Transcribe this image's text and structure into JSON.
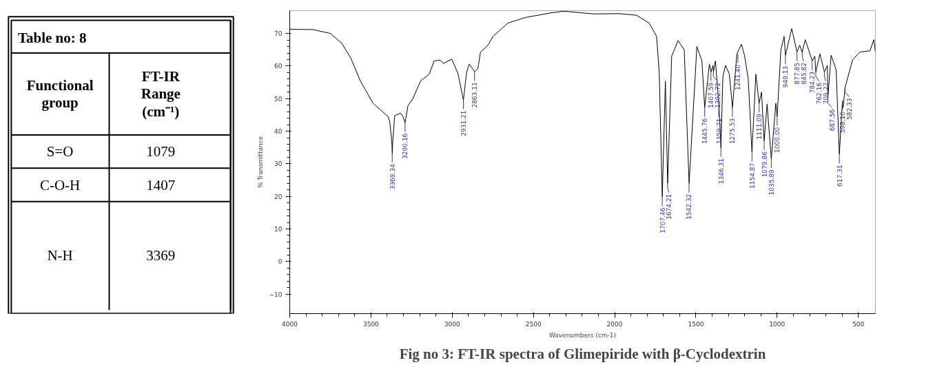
{
  "chart_data": [
    {
      "type": "other",
      "title": "Table no: 8",
      "annotations": [
        "Functional group",
        "FT-IR Range (cm⁻¹)",
        "S=O",
        "1079",
        "C-O-H",
        "1407",
        "N-H",
        "3369"
      ]
    },
    {
      "type": "line",
      "title": "Fig no 3: FT-IR spectra of Glimepiride with β-Cyclodextrin",
      "xlabel": "Wavenumbers (cm-1)",
      "ylabel": "% Transmittance",
      "color": "#000000",
      "x": [
        4000,
        3857,
        3749,
        3680,
        3626,
        3565,
        3488,
        3395,
        3385,
        3372,
        3369,
        3365,
        3354,
        3318,
        3303,
        3290,
        3272,
        3242,
        3195,
        3142,
        3111,
        3072,
        3054,
        3003,
        2965,
        2931,
        2911,
        2895,
        2869,
        2863,
        2842,
        2826,
        2780,
        2749,
        2657,
        2549,
        2395,
        2318,
        2283,
        2128,
        1974,
        1866,
        1788,
        1742,
        1726,
        1707,
        1688,
        1674,
        1649,
        1610,
        1572,
        1542,
        1494,
        1463,
        1446,
        1417,
        1407,
        1395,
        1392,
        1380,
        1357,
        1346,
        1334,
        1318,
        1294,
        1275,
        1248,
        1220,
        1201,
        1178,
        1155,
        1131,
        1111,
        1096,
        1080,
        1062,
        1036,
        1008,
        1000,
        977,
        957,
        949,
        910,
        878,
        861,
        846,
        827,
        784,
        768,
        762,
        737,
        709,
        691,
        688,
        668,
        637,
        617,
        598,
        594,
        582,
        536,
        490,
        428,
        405,
        395
      ],
      "values": [
        71.3,
        71.2,
        70,
        67,
        62.6,
        55.4,
        48.6,
        44.5,
        43.1,
        37,
        33.2,
        37.6,
        44.8,
        45.5,
        44.5,
        42.6,
        47.9,
        50,
        55.4,
        57.5,
        61.6,
        61.8,
        60.8,
        62.1,
        57.8,
        49.6,
        58.2,
        60.6,
        58.8,
        58.3,
        59.2,
        64.3,
        66.4,
        69.1,
        73.2,
        74.9,
        76.3,
        76.8,
        76.7,
        76,
        76.1,
        75.6,
        73.2,
        69.1,
        58.2,
        19.8,
        55.4,
        24,
        63,
        67.8,
        65,
        24,
        66,
        61.6,
        47.2,
        60.6,
        58.2,
        60.2,
        58.2,
        61.6,
        47.2,
        34.9,
        56.8,
        60.2,
        57.5,
        47.2,
        63.7,
        66.7,
        63.3,
        56.1,
        33.5,
        57.5,
        48.6,
        52,
        37,
        48.3,
        31.5,
        48.6,
        44.5,
        65,
        69.1,
        63.3,
        71.5,
        64.3,
        66.4,
        64.3,
        68.1,
        61.6,
        63,
        58.2,
        63.7,
        58.2,
        60.2,
        50,
        63.3,
        58.9,
        32.9,
        49.3,
        47.2,
        53.4,
        61.9,
        64.3,
        64.7,
        68.1,
        64.3
      ],
      "xlim": [
        4000,
        395
      ],
      "ylim": [
        -16,
        77
      ],
      "xticks": [
        4000,
        3500,
        3000,
        2500,
        2000,
        1500,
        1000,
        500
      ],
      "yticks": [
        -10,
        0,
        10,
        20,
        30,
        40,
        50,
        60,
        70
      ],
      "annotations": [
        {
          "text": "3369.34",
          "x": 3369.34,
          "y": 33.2
        },
        {
          "text": "3290.16",
          "x": 3290.16,
          "y": 42.6
        },
        {
          "text": "2931.21",
          "x": 2931.21,
          "y": 49.6
        },
        {
          "text": "2863.11",
          "x": 2863.11,
          "y": 58.3
        },
        {
          "text": "1707.46",
          "x": 1707.46,
          "y": 19.8
        },
        {
          "text": "1674.21",
          "x": 1674.21,
          "y": 24
        },
        {
          "text": "1542.32",
          "x": 1542.32,
          "y": 24
        },
        {
          "text": "1445.76",
          "x": 1445.76,
          "y": 47.2
        },
        {
          "text": "1407.59",
          "x": 1407.59,
          "y": 58.2
        },
        {
          "text": "1392.72",
          "x": 1392.72,
          "y": 58.2
        },
        {
          "text": "1359.71",
          "x": 1359.71,
          "y": 47.2
        },
        {
          "text": "1346.31",
          "x": 1346.31,
          "y": 34.9
        },
        {
          "text": "1275.53",
          "x": 1275.53,
          "y": 47.2
        },
        {
          "text": "1241.40",
          "x": 1241.4,
          "y": 63.7
        },
        {
          "text": "1154.87",
          "x": 1154.87,
          "y": 33.5
        },
        {
          "text": "1111.09",
          "x": 1111.09,
          "y": 48.6
        },
        {
          "text": "1079.86",
          "x": 1079.86,
          "y": 37
        },
        {
          "text": "1035.89",
          "x": 1035.89,
          "y": 31.5
        },
        {
          "text": "1000.00",
          "x": 1000,
          "y": 44.5
        },
        {
          "text": "949.13",
          "x": 949.13,
          "y": 63.3
        },
        {
          "text": "877.85",
          "x": 877.85,
          "y": 64.3
        },
        {
          "text": "845.82",
          "x": 845.82,
          "y": 64.3
        },
        {
          "text": "784.23",
          "x": 784.23,
          "y": 61.6
        },
        {
          "text": "762.16",
          "x": 762.16,
          "y": 58.2
        },
        {
          "text": "709.27",
          "x": 709.27,
          "y": 58.2
        },
        {
          "text": "687.56",
          "x": 687.56,
          "y": 50
        },
        {
          "text": "617.31",
          "x": 617.31,
          "y": 32.9
        },
        {
          "text": "598.10",
          "x": 598.1,
          "y": 49.3
        },
        {
          "text": "582.33",
          "x": 582.33,
          "y": 53.4
        }
      ]
    }
  ]
}
